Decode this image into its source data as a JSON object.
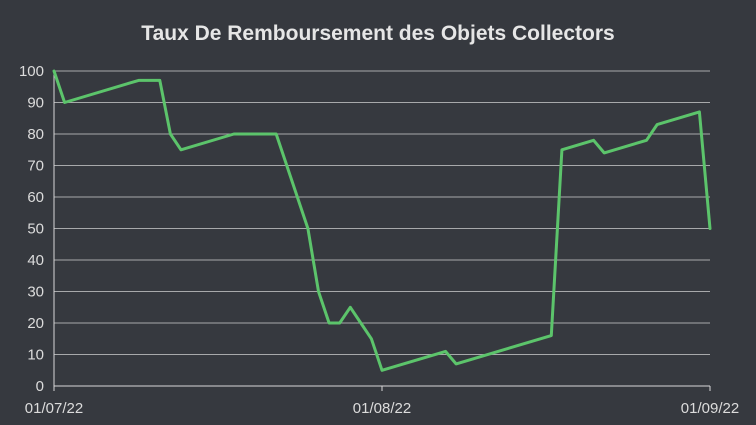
{
  "chart_data": {
    "type": "line",
    "title": "Taux De Remboursement des Objets Collectors",
    "xlabel": "",
    "ylabel": "",
    "x_ticks": [
      "01/07/22",
      "01/08/22",
      "01/09/22"
    ],
    "x_range": [
      "2022-07-01",
      "2022-09-01"
    ],
    "ylim": [
      0,
      100
    ],
    "y_ticks": [
      0,
      10,
      20,
      30,
      40,
      50,
      60,
      70,
      80,
      90,
      100
    ],
    "grid": true,
    "legend": "none",
    "colors": {
      "background": "#36393f",
      "line": "#5cc46b"
    },
    "series": [
      {
        "x": [
          "2022-07-01",
          "2022-07-02",
          "2022-07-09",
          "2022-07-11",
          "2022-07-12",
          "2022-07-13",
          "2022-07-18",
          "2022-07-22",
          "2022-07-25",
          "2022-07-26",
          "2022-07-27",
          "2022-07-28",
          "2022-07-29",
          "2022-07-30",
          "2022-07-31",
          "2022-08-01",
          "2022-08-07",
          "2022-08-08",
          "2022-08-17",
          "2022-08-18",
          "2022-08-21",
          "2022-08-22",
          "2022-08-26",
          "2022-08-27",
          "2022-08-31",
          "2022-09-01"
        ],
        "y": [
          100,
          90,
          97,
          97,
          80,
          75,
          80,
          80,
          50,
          30,
          20,
          20,
          25,
          20,
          15,
          5,
          11,
          7,
          16,
          75,
          78,
          74,
          78,
          83,
          87,
          50
        ]
      }
    ]
  }
}
